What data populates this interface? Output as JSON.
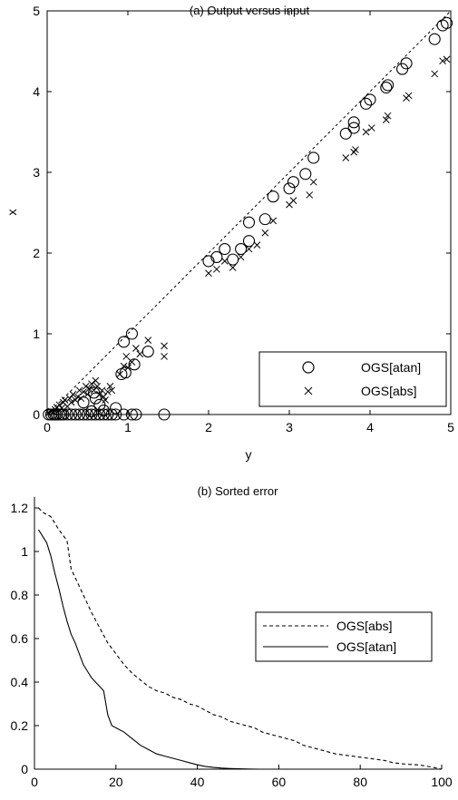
{
  "chart_data": [
    {
      "type": "scatter",
      "title": "(a) Output versus input",
      "xlabel": "y",
      "ylabel": "x",
      "xlim": [
        0,
        5
      ],
      "ylim": [
        0,
        5
      ],
      "xticks": [
        "0",
        "1",
        "2",
        "3",
        "4",
        "5"
      ],
      "yticks": [
        "0",
        "1",
        "2",
        "3",
        "4",
        "5"
      ],
      "grid": false,
      "legend_position": "bottom-right",
      "reference_line": {
        "style": "dashed",
        "points": [
          [
            0,
            0
          ],
          [
            5,
            5
          ]
        ]
      },
      "series": [
        {
          "name": "OGS[atan]",
          "marker": "circle",
          "points": [
            [
              0.02,
              0
            ],
            [
              0.05,
              0
            ],
            [
              0.08,
              0
            ],
            [
              0.1,
              0
            ],
            [
              0.12,
              0
            ],
            [
              0.15,
              0
            ],
            [
              0.18,
              0
            ],
            [
              0.2,
              0
            ],
            [
              0.25,
              0
            ],
            [
              0.3,
              0
            ],
            [
              0.35,
              0
            ],
            [
              0.4,
              0
            ],
            [
              0.45,
              0
            ],
            [
              0.5,
              0
            ],
            [
              0.55,
              0
            ],
            [
              0.6,
              0
            ],
            [
              0.65,
              0
            ],
            [
              0.7,
              0
            ],
            [
              0.75,
              0
            ],
            [
              0.8,
              0
            ],
            [
              0.85,
              0
            ],
            [
              0.95,
              0
            ],
            [
              1.05,
              0
            ],
            [
              1.1,
              0
            ],
            [
              1.45,
              0
            ],
            [
              0.55,
              0.04
            ],
            [
              0.7,
              0.05
            ],
            [
              0.85,
              0.08
            ],
            [
              0.65,
              0.12
            ],
            [
              0.45,
              0.15
            ],
            [
              0.6,
              0.2
            ],
            [
              0.58,
              0.27
            ],
            [
              0.92,
              0.5
            ],
            [
              0.97,
              0.52
            ],
            [
              1.08,
              0.62
            ],
            [
              1.25,
              0.78
            ],
            [
              0.95,
              0.9
            ],
            [
              1.05,
              1.0
            ],
            [
              2.0,
              1.9
            ],
            [
              2.1,
              1.95
            ],
            [
              2.2,
              2.05
            ],
            [
              2.3,
              1.92
            ],
            [
              2.4,
              2.05
            ],
            [
              2.5,
              2.15
            ],
            [
              2.5,
              2.38
            ],
            [
              2.7,
              2.42
            ],
            [
              2.8,
              2.7
            ],
            [
              3.0,
              2.8
            ],
            [
              3.05,
              2.88
            ],
            [
              3.2,
              2.98
            ],
            [
              3.3,
              3.18
            ],
            [
              3.7,
              3.48
            ],
            [
              3.8,
              3.55
            ],
            [
              3.8,
              3.62
            ],
            [
              3.95,
              3.85
            ],
            [
              4.0,
              3.9
            ],
            [
              4.2,
              4.05
            ],
            [
              4.22,
              4.08
            ],
            [
              4.4,
              4.28
            ],
            [
              4.45,
              4.35
            ],
            [
              4.8,
              4.65
            ],
            [
              4.9,
              4.82
            ],
            [
              4.95,
              4.85
            ]
          ]
        },
        {
          "name": "OGS[abs]",
          "marker": "x",
          "points": [
            [
              0.02,
              0.02
            ],
            [
              0.05,
              0.04
            ],
            [
              0.08,
              0.03
            ],
            [
              0.1,
              0.06
            ],
            [
              0.12,
              0.09
            ],
            [
              0.15,
              0.12
            ],
            [
              0.18,
              0.08
            ],
            [
              0.2,
              0.15
            ],
            [
              0.22,
              0.18
            ],
            [
              0.25,
              0.1
            ],
            [
              0.28,
              0.2
            ],
            [
              0.3,
              0.15
            ],
            [
              0.32,
              0.25
            ],
            [
              0.35,
              0.18
            ],
            [
              0.38,
              0.22
            ],
            [
              0.4,
              0.3
            ],
            [
              0.42,
              0.2
            ],
            [
              0.45,
              0.28
            ],
            [
              0.48,
              0.35
            ],
            [
              0.5,
              0.25
            ],
            [
              0.52,
              0.32
            ],
            [
              0.55,
              0.38
            ],
            [
              0.58,
              0.3
            ],
            [
              0.6,
              0.42
            ],
            [
              0.62,
              0.35
            ],
            [
              0.65,
              0.25
            ],
            [
              0.68,
              0.3
            ],
            [
              0.7,
              0.22
            ],
            [
              0.72,
              0.18
            ],
            [
              0.75,
              0.28
            ],
            [
              0.78,
              0.35
            ],
            [
              0.8,
              0.3
            ],
            [
              0.9,
              0.5
            ],
            [
              0.95,
              0.6
            ],
            [
              0.98,
              0.72
            ],
            [
              1.0,
              0.58
            ],
            [
              1.05,
              0.65
            ],
            [
              1.1,
              0.82
            ],
            [
              1.15,
              0.75
            ],
            [
              1.25,
              0.92
            ],
            [
              1.45,
              0.85
            ],
            [
              1.45,
              0.72
            ],
            [
              2.0,
              1.75
            ],
            [
              2.1,
              1.8
            ],
            [
              2.2,
              1.9
            ],
            [
              2.3,
              1.82
            ],
            [
              2.4,
              1.95
            ],
            [
              2.5,
              2.05
            ],
            [
              2.6,
              2.1
            ],
            [
              2.7,
              2.25
            ],
            [
              2.8,
              2.4
            ],
            [
              3.0,
              2.6
            ],
            [
              3.05,
              2.65
            ],
            [
              3.25,
              2.72
            ],
            [
              3.3,
              2.88
            ],
            [
              3.7,
              3.18
            ],
            [
              3.8,
              3.25
            ],
            [
              3.82,
              3.28
            ],
            [
              3.95,
              3.5
            ],
            [
              4.02,
              3.55
            ],
            [
              4.2,
              3.65
            ],
            [
              4.22,
              3.7
            ],
            [
              4.45,
              3.92
            ],
            [
              4.48,
              3.95
            ],
            [
              4.8,
              4.22
            ],
            [
              4.9,
              4.38
            ],
            [
              4.95,
              4.4
            ]
          ]
        }
      ]
    },
    {
      "type": "line",
      "title": "(b) Sorted error",
      "xlabel": "",
      "ylabel": "",
      "xlim": [
        0,
        100
      ],
      "ylim": [
        0,
        1.25
      ],
      "xticks": [
        "0",
        "20",
        "40",
        "60",
        "80",
        "100"
      ],
      "yticks": [
        "0",
        "0.2",
        "0.4",
        "0.6",
        "0.8",
        "1",
        "1.2"
      ],
      "grid": false,
      "legend_position": "right",
      "series": [
        {
          "name": "OGS[abs]",
          "style": "dashed",
          "points": [
            [
              1,
              1.2
            ],
            [
              2,
              1.18
            ],
            [
              4,
              1.16
            ],
            [
              6,
              1.1
            ],
            [
              8,
              1.05
            ],
            [
              9,
              0.92
            ],
            [
              10,
              0.88
            ],
            [
              12,
              0.8
            ],
            [
              14,
              0.72
            ],
            [
              16,
              0.65
            ],
            [
              18,
              0.58
            ],
            [
              20,
              0.53
            ],
            [
              22,
              0.48
            ],
            [
              24,
              0.44
            ],
            [
              26,
              0.41
            ],
            [
              28,
              0.38
            ],
            [
              30,
              0.36
            ],
            [
              32,
              0.35
            ],
            [
              34,
              0.33
            ],
            [
              36,
              0.32
            ],
            [
              38,
              0.3
            ],
            [
              40,
              0.29
            ],
            [
              42,
              0.27
            ],
            [
              44,
              0.25
            ],
            [
              46,
              0.24
            ],
            [
              48,
              0.22
            ],
            [
              50,
              0.21
            ],
            [
              52,
              0.2
            ],
            [
              54,
              0.19
            ],
            [
              56,
              0.17
            ],
            [
              58,
              0.16
            ],
            [
              60,
              0.15
            ],
            [
              62,
              0.14
            ],
            [
              64,
              0.13
            ],
            [
              66,
              0.11
            ],
            [
              68,
              0.1
            ],
            [
              70,
              0.09
            ],
            [
              72,
              0.08
            ],
            [
              74,
              0.07
            ],
            [
              76,
              0.065
            ],
            [
              78,
              0.06
            ],
            [
              80,
              0.055
            ],
            [
              82,
              0.05
            ],
            [
              84,
              0.045
            ],
            [
              86,
              0.04
            ],
            [
              88,
              0.03
            ],
            [
              90,
              0.025
            ],
            [
              92,
              0.022
            ],
            [
              94,
              0.02
            ],
            [
              96,
              0.015
            ],
            [
              98,
              0.008
            ],
            [
              100,
              0
            ]
          ]
        },
        {
          "name": "OGS[atan]",
          "style": "solid",
          "points": [
            [
              1,
              1.1
            ],
            [
              2,
              1.07
            ],
            [
              3,
              1.04
            ],
            [
              4,
              0.98
            ],
            [
              5,
              0.9
            ],
            [
              6,
              0.83
            ],
            [
              7,
              0.75
            ],
            [
              8,
              0.68
            ],
            [
              9,
              0.62
            ],
            [
              10,
              0.58
            ],
            [
              11,
              0.53
            ],
            [
              12,
              0.48
            ],
            [
              13,
              0.45
            ],
            [
              14,
              0.42
            ],
            [
              15,
              0.4
            ],
            [
              16,
              0.38
            ],
            [
              17,
              0.36
            ],
            [
              18,
              0.25
            ],
            [
              19,
              0.2
            ],
            [
              20,
              0.19
            ],
            [
              22,
              0.17
            ],
            [
              24,
              0.14
            ],
            [
              26,
              0.11
            ],
            [
              28,
              0.09
            ],
            [
              30,
              0.07
            ],
            [
              32,
              0.06
            ],
            [
              34,
              0.05
            ],
            [
              36,
              0.04
            ],
            [
              38,
              0.03
            ],
            [
              40,
              0.02
            ],
            [
              42,
              0.012
            ],
            [
              44,
              0.008
            ],
            [
              46,
              0.005
            ],
            [
              48,
              0.003
            ],
            [
              50,
              0.002
            ],
            [
              52,
              0.001
            ],
            [
              55,
              0
            ],
            [
              60,
              0
            ],
            [
              70,
              0
            ],
            [
              80,
              0
            ],
            [
              90,
              0
            ],
            [
              100,
              0
            ]
          ]
        }
      ]
    }
  ]
}
